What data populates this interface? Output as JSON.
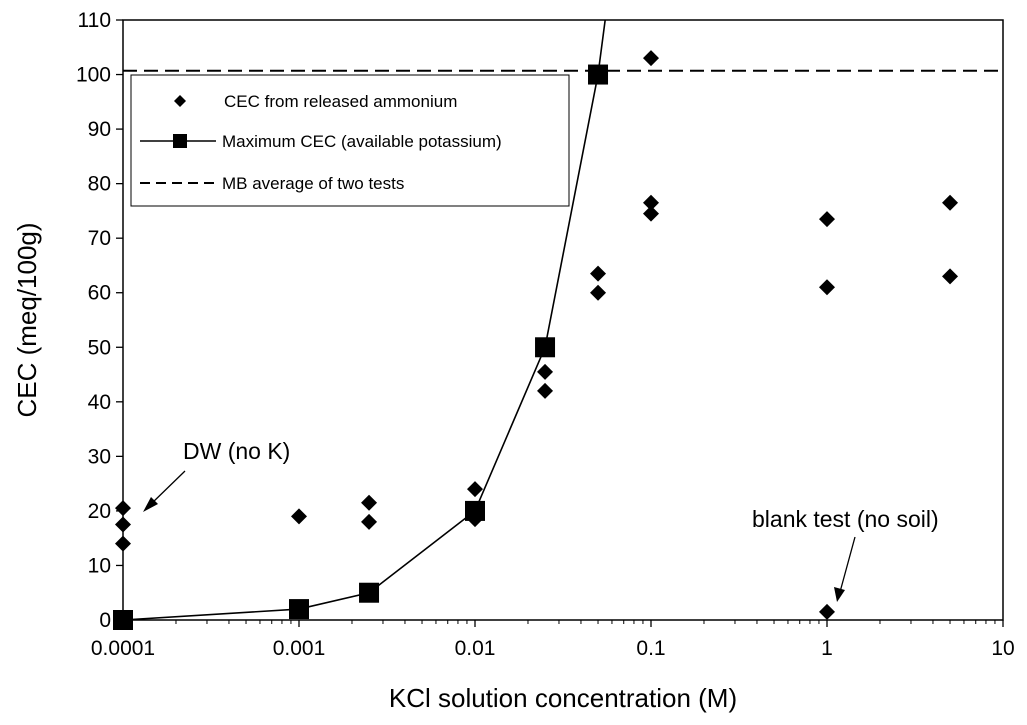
{
  "chart_data": {
    "type": "scatter",
    "xlabel": "KCl solution concentration (M)",
    "ylabel": "CEC (meq/100g)",
    "xscale": "log",
    "xlim": [
      0.0001,
      10
    ],
    "ylim": [
      0,
      110
    ],
    "xticks": [
      "0.0001",
      "0.001",
      "0.01",
      "0.1",
      "1",
      "10"
    ],
    "yticks": [
      0,
      10,
      20,
      30,
      40,
      50,
      60,
      70,
      80,
      90,
      100,
      110
    ],
    "grid": false,
    "legend_position": "top-left",
    "series": [
      {
        "name": "CEC from released ammonium",
        "type": "scatter",
        "marker": "diamond",
        "color": "#000000",
        "points": [
          [
            0.0001,
            20.5
          ],
          [
            0.0001,
            17.5
          ],
          [
            0.0001,
            14
          ],
          [
            0.001,
            19
          ],
          [
            0.0025,
            21.5
          ],
          [
            0.0025,
            18
          ],
          [
            0.01,
            24
          ],
          [
            0.01,
            18.5
          ],
          [
            0.025,
            45.5
          ],
          [
            0.025,
            42
          ],
          [
            0.05,
            63.5
          ],
          [
            0.05,
            60
          ],
          [
            0.1,
            103
          ],
          [
            0.1,
            76.5
          ],
          [
            0.1,
            74.5
          ],
          [
            1,
            73.5
          ],
          [
            1,
            61
          ],
          [
            1,
            1.5
          ],
          [
            5,
            76.5
          ],
          [
            5,
            63
          ]
        ]
      },
      {
        "name": "Maximum CEC (available potassium)",
        "type": "line",
        "marker": "square",
        "color": "#000000",
        "points": [
          [
            0.0001,
            0
          ],
          [
            0.001,
            2
          ],
          [
            0.0025,
            5
          ],
          [
            0.01,
            20
          ],
          [
            0.025,
            50
          ],
          [
            0.05,
            100
          ],
          [
            0.057,
            114
          ]
        ]
      },
      {
        "name": "MB average of two tests",
        "type": "hline",
        "style": "dashed",
        "color": "#000000",
        "y": 100.7
      }
    ],
    "annotations": [
      {
        "text": "DW (no K)",
        "x": 0.0001,
        "y": 20
      },
      {
        "text": "blank test (no soil)",
        "x": 1,
        "y": 1.5
      }
    ]
  }
}
